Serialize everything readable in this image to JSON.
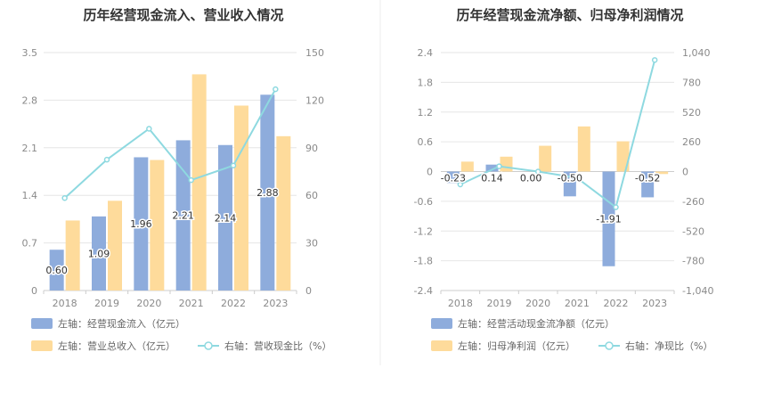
{
  "chart_data": [
    {
      "type": "bar",
      "title": "历年经营现金流入、营业收入情况",
      "categories": [
        "2018",
        "2019",
        "2020",
        "2021",
        "2022",
        "2023"
      ],
      "y_left": {
        "ticks": [
          0,
          0.7,
          1.4,
          2.1,
          2.8,
          3.5
        ],
        "tick_labels": [
          "0",
          "0.7",
          "1.4",
          "2.1",
          "2.8",
          "3.5"
        ],
        "range": [
          0,
          3.5
        ]
      },
      "y_right": {
        "ticks": [
          0,
          30,
          60,
          90,
          120,
          150
        ],
        "tick_labels": [
          "0",
          "30",
          "60",
          "90",
          "120",
          "150"
        ],
        "range": [
          0,
          150
        ]
      },
      "series": [
        {
          "name": "左轴：经营现金流入（亿元）",
          "kind": "bar",
          "axis": "left",
          "color": "#8eacdc",
          "values": [
            0.6,
            1.09,
            1.96,
            2.21,
            2.14,
            2.88
          ],
          "labels": [
            "0.60",
            "1.09",
            "1.96",
            "2.21",
            "2.14",
            "2.88"
          ]
        },
        {
          "name": "左轴：营业总收入（亿元）",
          "kind": "bar",
          "axis": "left",
          "color": "#fedb9b",
          "values": [
            1.03,
            1.32,
            1.92,
            3.18,
            2.72,
            2.27
          ]
        },
        {
          "name": "右轴：营收现金比（%）",
          "kind": "line",
          "axis": "right",
          "color": "#8ed9e0",
          "values": [
            58.3,
            82.5,
            102.0,
            69.6,
            78.8,
            126.9
          ]
        }
      ],
      "grid": true
    },
    {
      "type": "bar",
      "title": "历年经营现金流净额、归母净利润情况",
      "categories": [
        "2018",
        "2019",
        "2020",
        "2021",
        "2022",
        "2023"
      ],
      "y_left": {
        "ticks": [
          -2.4,
          -1.8,
          -1.2,
          -0.6,
          0,
          0.6,
          1.2,
          1.8,
          2.4
        ],
        "tick_labels": [
          "-2.4",
          "-1.8",
          "-1.2",
          "-0.6",
          "0",
          "0.6",
          "1.2",
          "1.8",
          "2.4"
        ],
        "range": [
          -2.4,
          2.4
        ]
      },
      "y_right": {
        "ticks": [
          -1040,
          -780,
          -520,
          -260,
          0,
          260,
          520,
          780,
          1040
        ],
        "tick_labels": [
          "-1,040",
          "-780",
          "-520",
          "-260",
          "0",
          "260",
          "520",
          "780",
          "1,040"
        ],
        "range": [
          -1040,
          1040
        ]
      },
      "series": [
        {
          "name": "左轴：经营活动现金流净额（亿元）",
          "kind": "bar",
          "axis": "left",
          "color": "#8eacdc",
          "values": [
            -0.23,
            0.14,
            0.0,
            -0.5,
            -1.91,
            -0.52
          ],
          "labels": [
            "-0.23",
            "0.14",
            "0.00",
            "-0.50",
            "-1.91",
            "-0.52"
          ]
        },
        {
          "name": "左轴：归母净利润（亿元）",
          "kind": "bar",
          "axis": "left",
          "color": "#fedb9b",
          "values": [
            0.2,
            0.3,
            0.52,
            0.91,
            0.61,
            -0.05
          ]
        },
        {
          "name": "右轴：净现比（%）",
          "kind": "line",
          "axis": "right",
          "color": "#8ed9e0",
          "values": [
            -113,
            46,
            0,
            -55,
            -312,
            975
          ]
        }
      ],
      "grid": true
    }
  ]
}
